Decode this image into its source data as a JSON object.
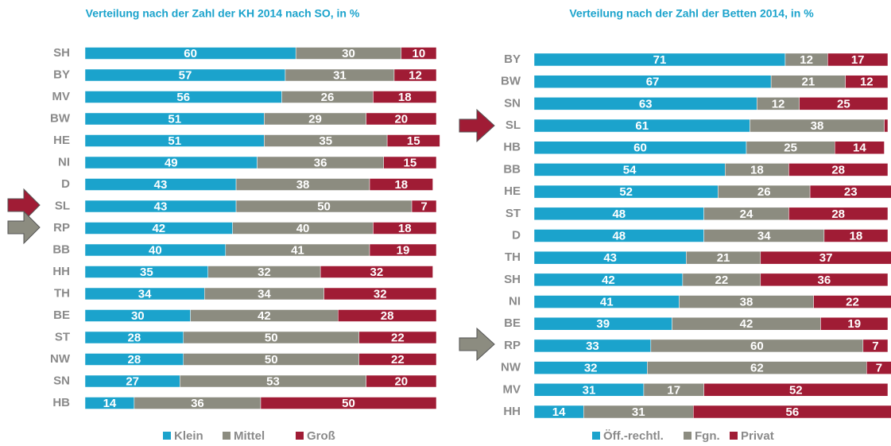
{
  "chart_data": [
    {
      "type": "stacked_bar",
      "orientation": "horizontal",
      "title": "Verteilung nach der Zahl der KH 2014 nach SO, in %",
      "categories": [
        "SH",
        "BY",
        "MV",
        "BW",
        "HE",
        "NI",
        "D",
        "SL",
        "RP",
        "BB",
        "HH",
        "TH",
        "BE",
        "ST",
        "NW",
        "SN",
        "HB"
      ],
      "xlim": [
        0,
        100
      ],
      "series": [
        {
          "name": "Klein",
          "color": "#1ba3cc",
          "values": [
            60,
            57,
            56,
            51,
            51,
            49,
            43,
            43,
            42,
            40,
            35,
            34,
            30,
            28,
            28,
            27,
            14
          ]
        },
        {
          "name": "Mittel",
          "color": "#8c8c80",
          "values": [
            30,
            31,
            26,
            29,
            35,
            36,
            38,
            50,
            40,
            41,
            32,
            34,
            42,
            50,
            50,
            53,
            36
          ]
        },
        {
          "name": "Groß",
          "color": "#a01c35",
          "values": [
            10,
            12,
            18,
            20,
            15,
            15,
            18,
            7,
            18,
            19,
            32,
            32,
            28,
            22,
            22,
            20,
            50
          ]
        }
      ]
    },
    {
      "type": "stacked_bar",
      "orientation": "horizontal",
      "title": "Verteilung nach der Zahl der Betten 2014, in %",
      "categories": [
        "BY",
        "BW",
        "SN",
        "SL",
        "HB",
        "BB",
        "HE",
        "ST",
        "D",
        "TH",
        "SH",
        "NI",
        "BE",
        "RP",
        "NW",
        "MV",
        "HH"
      ],
      "xlim": [
        0,
        100
      ],
      "series": [
        {
          "name": "Öff.-rechtl.",
          "color": "#1ba3cc",
          "values": [
            71,
            67,
            63,
            61,
            60,
            54,
            52,
            48,
            48,
            43,
            42,
            41,
            39,
            33,
            32,
            31,
            14
          ]
        },
        {
          "name": "Fgn.",
          "color": "#8c8c80",
          "values": [
            12,
            21,
            12,
            38,
            25,
            18,
            26,
            24,
            34,
            21,
            22,
            38,
            42,
            60,
            62,
            17,
            31
          ]
        },
        {
          "name": "Privat",
          "color": "#a01c35",
          "values": [
            17,
            12,
            25,
            1,
            14,
            28,
            23,
            28,
            18,
            37,
            36,
            22,
            19,
            7,
            7,
            52,
            56
          ]
        }
      ]
    }
  ]
}
